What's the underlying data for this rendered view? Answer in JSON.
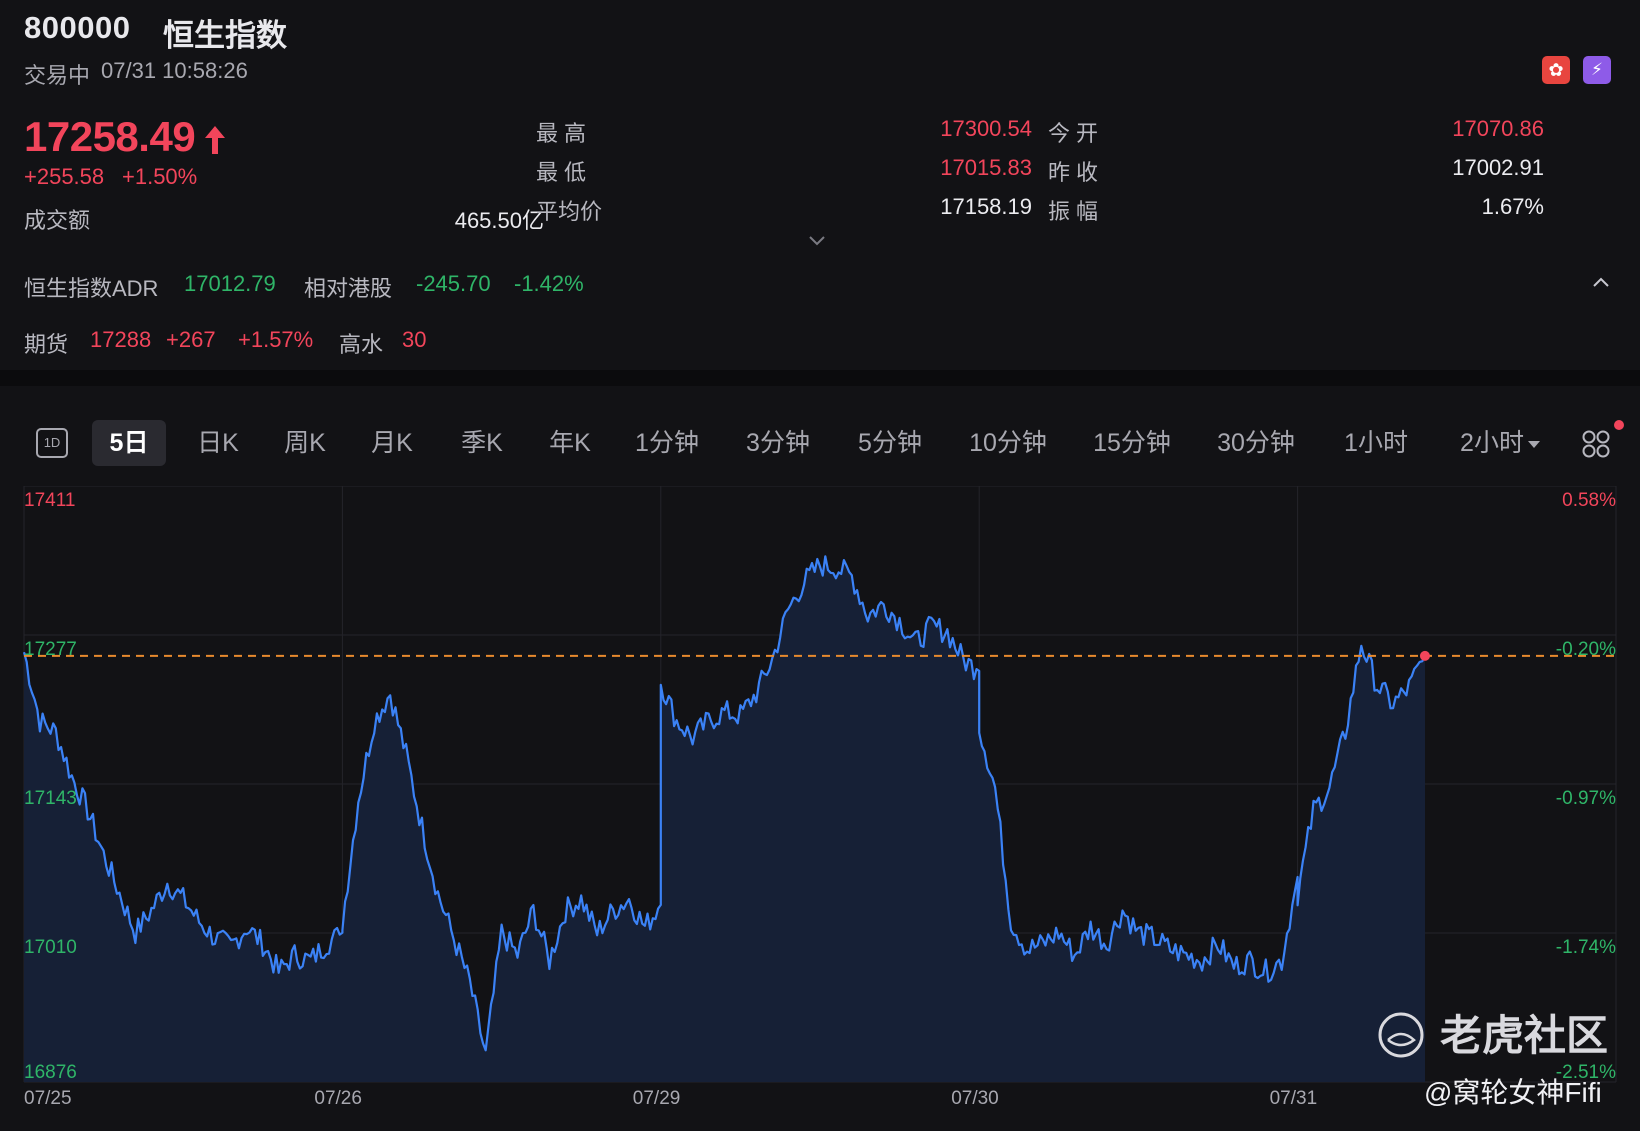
{
  "header": {
    "code": "800000",
    "name": "恒生指数",
    "status": "交易中",
    "datetime": "07/31 10:58:26",
    "icons": [
      "hong-kong-flag-icon",
      "level-2-icon"
    ]
  },
  "quote": {
    "price": "17258.49",
    "change": "+255.58",
    "change_pct": "+1.50%",
    "direction": "up",
    "turnover_label": "成交额",
    "turnover": "465.50亿"
  },
  "stats": {
    "high_label": "最高",
    "high": "17300.54",
    "low_label": "最低",
    "low": "17015.83",
    "avg_label": "平均价",
    "avg": "17158.19",
    "open_label": "今开",
    "open": "17070.86",
    "prev_close_label": "昨收",
    "prev_close": "17002.91",
    "amplitude_label": "振幅",
    "amplitude": "1.67%"
  },
  "adr": {
    "label": "恒生指数ADR",
    "value": "17012.79",
    "relative_label": "相对港股",
    "relative_change": "-245.70",
    "relative_pct": "-1.42%"
  },
  "futures": {
    "label": "期货",
    "value": "17288",
    "change": "+267",
    "change_pct": "+1.57%",
    "premium_label": "高水",
    "premium": "30"
  },
  "toolbar": {
    "tabs": [
      "1D",
      "5日",
      "日K",
      "周K",
      "月K",
      "季K",
      "年K",
      "1分钟",
      "3分钟",
      "5分钟",
      "10分钟",
      "15分钟",
      "30分钟",
      "1小时",
      "2小时"
    ],
    "active_tab": "5日"
  },
  "chart_data": {
    "type": "area",
    "x_tick_labels": [
      "07/25",
      "07/26",
      "07/29",
      "07/30",
      "07/31"
    ],
    "y_left_ticks": [
      "17411",
      "17277",
      "17143",
      "17010",
      "16876"
    ],
    "y_right_ticks": [
      "0.58%",
      "-0.20%",
      "-0.97%",
      "-1.74%",
      "-2.51%"
    ],
    "ylim": [
      16876,
      17411
    ],
    "reference_line": 17258.49,
    "reference_style": "dashed orange",
    "line_color": "#3b82f6",
    "fill_color": "#162036",
    "series": [
      {
        "days": [
          {
            "label": "07/25",
            "values": [
              17262,
              17200,
              17190,
              17150,
              17120,
              17080,
              17045,
              17010,
              17030,
              17055,
              17040,
              17020,
              17005,
              16998,
              17015,
              17000,
              16975,
              16990,
              16985,
              17000,
              17010
            ]
          },
          {
            "label": "07/26",
            "values": [
              17020,
              17130,
              17200,
              17225,
              17170,
              17105,
              17045,
              17005,
              16965,
              16900,
              17010,
              16990,
              17030,
              16985,
              17030,
              17040,
              17010,
              17030,
              17040,
              17015,
              17035
            ]
          },
          {
            "label": "07/29",
            "values": [
              17235,
              17200,
              17185,
              17200,
              17208,
              17205,
              17225,
              17255,
              17300,
              17325,
              17340,
              17338,
              17330,
              17295,
              17305,
              17290,
              17270,
              17285,
              17280,
              17255,
              17245
            ]
          },
          {
            "label": "07/30",
            "values": [
              17195,
              17140,
              17020,
              16995,
              17000,
              17010,
              16990,
              17015,
              17000,
              17030,
              17010,
              17005,
              16995,
              16990,
              16985,
              17000,
              16980,
              16985,
              16975,
              16985,
              17060
            ]
          },
          {
            "label": "07/31",
            "values": [
              17045,
              17120,
              17140,
              17190,
              17270,
              17232,
              17215,
              17230,
              17258.49
            ]
          }
        ]
      }
    ]
  },
  "watermark": {
    "brand": "老虎社区",
    "user": "@窝轮女神Fifi"
  }
}
